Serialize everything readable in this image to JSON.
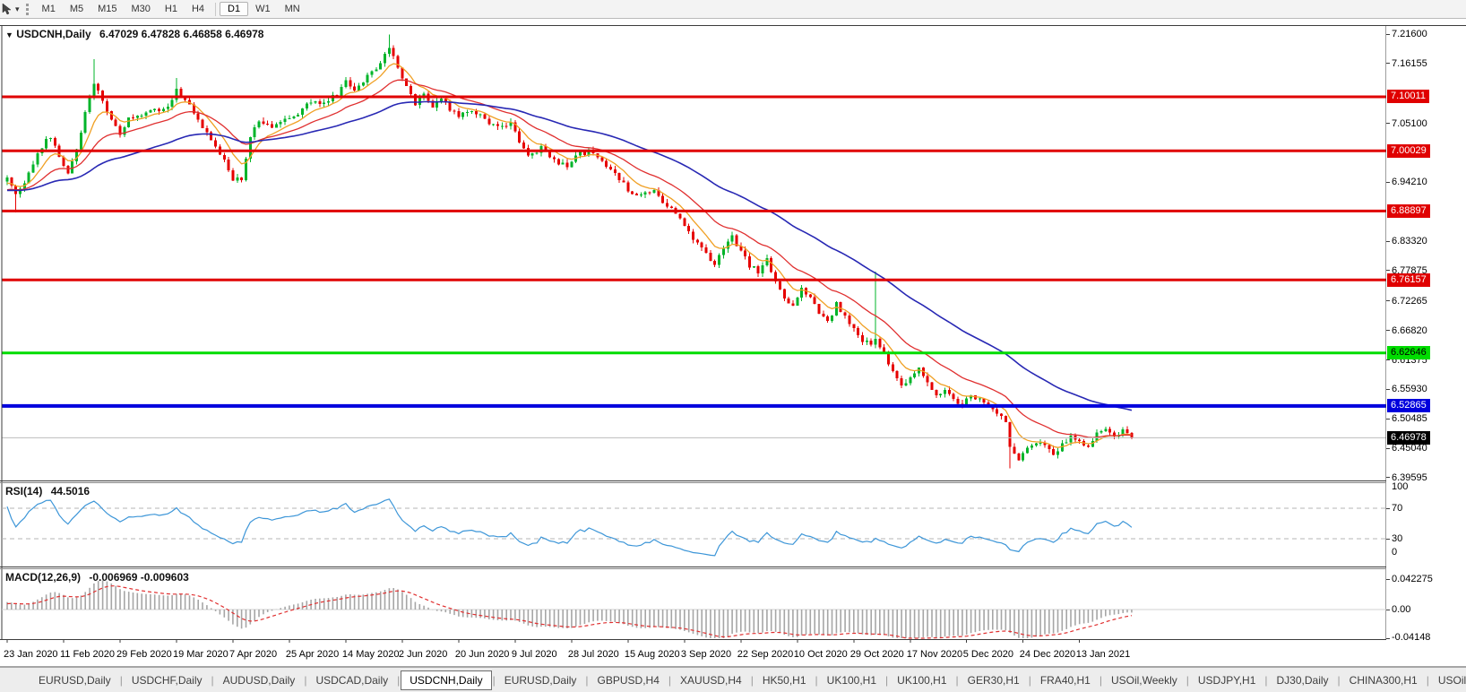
{
  "toolbar": {
    "timeframe_groups": [
      [
        "M1",
        "M5",
        "M15",
        "M30",
        "H1",
        "H4"
      ],
      [
        "D1",
        "W1",
        "MN"
      ]
    ],
    "active_timeframe": "D1",
    "dropdown_caret": "▾"
  },
  "header": {
    "collapse_caret": "▼",
    "symbol": "USDCNH,Daily",
    "ohlc_text": "6.47029 6.47828 6.46858 6.46978",
    "open": "6.47029",
    "high": "6.47828",
    "low": "6.46858",
    "close": "6.46978"
  },
  "price_axis": {
    "ticks": [
      "7.21600",
      "7.16155",
      "7.05100",
      "6.94210",
      "6.83320",
      "6.77875",
      "6.72265",
      "6.66820",
      "6.61375",
      "6.55930",
      "6.50485",
      "6.45040",
      "6.39595"
    ],
    "badges": [
      {
        "value": "7.10011",
        "price": 7.10011,
        "color": "#e00000",
        "text_color": "#ffffff"
      },
      {
        "value": "7.00029",
        "price": 7.00029,
        "color": "#e00000",
        "text_color": "#ffffff"
      },
      {
        "value": "6.88897",
        "price": 6.88897,
        "color": "#e00000",
        "text_color": "#ffffff"
      },
      {
        "value": "6.76157",
        "price": 6.76157,
        "color": "#e00000",
        "text_color": "#ffffff"
      },
      {
        "value": "6.62646",
        "price": 6.62646,
        "color": "#00dd00",
        "text_color": "#000000"
      },
      {
        "value": "6.52865",
        "price": 6.52865,
        "color": "#0000dd",
        "text_color": "#ffffff"
      },
      {
        "value": "6.46978",
        "price": 6.46978,
        "color": "#000000",
        "text_color": "#ffffff"
      }
    ]
  },
  "rsi_panel": {
    "label": "RSI(14)",
    "value": "44.5016",
    "axis_labels": [
      "100",
      "70",
      "30",
      "0"
    ]
  },
  "macd_panel": {
    "label": "MACD(12,26,9)",
    "values": "-0.006969 -0.009603",
    "axis_labels": [
      "0.042275",
      "0.00",
      "-0.04148"
    ]
  },
  "date_axis": {
    "labels": [
      "23 Jan 2020",
      "11 Feb 2020",
      "29 Feb 2020",
      "19 Mar 2020",
      "7 Apr 2020",
      "25 Apr 2020",
      "14 May 2020",
      "2 Jun 2020",
      "20 Jun 2020",
      "9 Jul 2020",
      "28 Jul 2020",
      "15 Aug 2020",
      "3 Sep 2020",
      "22 Sep 2020",
      "10 Oct 2020",
      "29 Oct 2020",
      "17 Nov 2020",
      "5 Dec 2020",
      "24 Dec 2020",
      "13 Jan 2021"
    ],
    "candles_per_label": 13
  },
  "tabs": {
    "items": [
      "EURUSD,Daily",
      "USDCHF,Daily",
      "AUDUSD,Daily",
      "USDCAD,Daily",
      "USDCNH,Daily",
      "EURUSD,Daily",
      "GBPUSD,H4",
      "XAUUSD,H4",
      "HK50,H1",
      "UK100,H1",
      "UK100,H1",
      "GER30,H1",
      "FRA40,H1",
      "USOil,Weekly",
      "USDJPY,H1",
      "DJ30,Daily",
      "CHINA300,H1",
      "USOil,"
    ],
    "active": "USDCNH,Daily",
    "scroll_left": "◄",
    "scroll_right": "►"
  },
  "chart_data": {
    "type": "candlestick",
    "symbol": "USDCNH",
    "timeframe": "Daily",
    "ohlc_display": {
      "open": 6.47029,
      "high": 6.47828,
      "low": 6.46858,
      "close": 6.46978
    },
    "current_price": 6.46978,
    "candles_count": 260,
    "ylim": [
      6.391,
      7.2326
    ],
    "price_axis_ticks": [
      7.216,
      7.16155,
      7.051,
      6.9421,
      6.8332,
      6.77875,
      6.72265,
      6.6682,
      6.61375,
      6.5593,
      6.50485,
      6.4504,
      6.39595
    ],
    "hlines": [
      {
        "price": 7.10011,
        "color": "#e00000",
        "width": 3
      },
      {
        "price": 7.00029,
        "color": "#e00000",
        "width": 3
      },
      {
        "price": 6.88897,
        "color": "#e00000",
        "width": 3
      },
      {
        "price": 6.76157,
        "color": "#e00000",
        "width": 3
      },
      {
        "price": 6.62646,
        "color": "#00dd00",
        "width": 3
      },
      {
        "price": 6.52865,
        "color": "#0000dd",
        "width": 4
      }
    ],
    "up_color": "#00b42a",
    "down_color": "#e60000",
    "moving_averages": [
      {
        "name": "fast",
        "period": 8,
        "color": "#f0a024",
        "width": 1.3
      },
      {
        "name": "medium",
        "period": 21,
        "color": "#e03030",
        "width": 1.3
      },
      {
        "name": "slow",
        "period": 55,
        "color": "#2828b4",
        "width": 1.6
      }
    ],
    "warmup_path": [
      [
        -55,
        6.99
      ],
      [
        -38,
        6.87
      ],
      [
        -20,
        6.9
      ],
      [
        -8,
        6.932
      ],
      [
        -1,
        6.946
      ]
    ],
    "close_path": [
      [
        0,
        6.95
      ],
      [
        2,
        6.918
      ],
      [
        4,
        6.938
      ],
      [
        7,
        6.998
      ],
      [
        10,
        7.028
      ],
      [
        12,
        6.985
      ],
      [
        14,
        6.962
      ],
      [
        16,
        7.002
      ],
      [
        18,
        7.075
      ],
      [
        20,
        7.122
      ],
      [
        22,
        7.095
      ],
      [
        24,
        7.058
      ],
      [
        26,
        7.028
      ],
      [
        28,
        7.058
      ],
      [
        31,
        7.068
      ],
      [
        34,
        7.075
      ],
      [
        37,
        7.078
      ],
      [
        39,
        7.112
      ],
      [
        41,
        7.095
      ],
      [
        44,
        7.058
      ],
      [
        47,
        7.018
      ],
      [
        50,
        6.982
      ],
      [
        52,
        6.948
      ],
      [
        54,
        6.945
      ],
      [
        56,
        7.028
      ],
      [
        58,
        7.055
      ],
      [
        61,
        7.042
      ],
      [
        64,
        7.058
      ],
      [
        67,
        7.068
      ],
      [
        70,
        7.092
      ],
      [
        73,
        7.088
      ],
      [
        76,
        7.105
      ],
      [
        78,
        7.128
      ],
      [
        80,
        7.112
      ],
      [
        83,
        7.138
      ],
      [
        86,
        7.162
      ],
      [
        88,
        7.192
      ],
      [
        90,
        7.158
      ],
      [
        92,
        7.118
      ],
      [
        94,
        7.088
      ],
      [
        96,
        7.108
      ],
      [
        98,
        7.082
      ],
      [
        100,
        7.095
      ],
      [
        102,
        7.078
      ],
      [
        104,
        7.062
      ],
      [
        107,
        7.075
      ],
      [
        110,
        7.058
      ],
      [
        113,
        7.042
      ],
      [
        116,
        7.052
      ],
      [
        118,
        7.018
      ],
      [
        120,
        6.992
      ],
      [
        123,
        7.005
      ],
      [
        126,
        6.982
      ],
      [
        129,
        6.972
      ],
      [
        132,
        6.995
      ],
      [
        135,
        6.998
      ],
      [
        138,
        6.972
      ],
      [
        141,
        6.948
      ],
      [
        143,
        6.928
      ],
      [
        146,
        6.918
      ],
      [
        149,
        6.925
      ],
      [
        152,
        6.898
      ],
      [
        155,
        6.878
      ],
      [
        158,
        6.838
      ],
      [
        161,
        6.812
      ],
      [
        163,
        6.79
      ],
      [
        165,
        6.822
      ],
      [
        167,
        6.842
      ],
      [
        169,
        6.815
      ],
      [
        171,
        6.788
      ],
      [
        173,
        6.778
      ],
      [
        175,
        6.798
      ],
      [
        177,
        6.76
      ],
      [
        179,
        6.73
      ],
      [
        181,
        6.712
      ],
      [
        183,
        6.748
      ],
      [
        185,
        6.73
      ],
      [
        187,
        6.7
      ],
      [
        189,
        6.682
      ],
      [
        191,
        6.718
      ],
      [
        193,
        6.692
      ],
      [
        195,
        6.668
      ],
      [
        197,
        6.65
      ],
      [
        199,
        6.64
      ],
      [
        200,
        6.652
      ],
      [
        202,
        6.625
      ],
      [
        204,
        6.59
      ],
      [
        206,
        6.565
      ],
      [
        208,
        6.582
      ],
      [
        210,
        6.598
      ],
      [
        212,
        6.572
      ],
      [
        214,
        6.552
      ],
      [
        216,
        6.558
      ],
      [
        218,
        6.542
      ],
      [
        220,
        6.532
      ],
      [
        222,
        6.548
      ],
      [
        224,
        6.538
      ],
      [
        226,
        6.528
      ],
      [
        228,
        6.518
      ],
      [
        230,
        6.498
      ],
      [
        231,
        6.452
      ],
      [
        233,
        6.432
      ],
      [
        235,
        6.448
      ],
      [
        237,
        6.462
      ],
      [
        239,
        6.452
      ],
      [
        241,
        6.438
      ],
      [
        243,
        6.458
      ],
      [
        245,
        6.472
      ],
      [
        247,
        6.462
      ],
      [
        249,
        6.452
      ],
      [
        251,
        6.478
      ],
      [
        253,
        6.488
      ],
      [
        255,
        6.472
      ],
      [
        257,
        6.482
      ],
      [
        259,
        6.47
      ]
    ],
    "wick_overrides": [
      {
        "i": 2,
        "low": 6.886
      },
      {
        "i": 20,
        "high": 7.17
      },
      {
        "i": 39,
        "high": 7.135
      },
      {
        "i": 88,
        "high": 7.215
      },
      {
        "i": 200,
        "high": 6.777
      },
      {
        "i": 231,
        "low": 6.413
      }
    ],
    "rsi": {
      "period": 14,
      "current": 44.5016,
      "levels": [
        70,
        30
      ],
      "color": "#3d96d8"
    },
    "macd": {
      "fast": 12,
      "slow": 26,
      "signal": 9,
      "current_macd": -0.006969,
      "current_signal": -0.009603,
      "axis_max": 0.042275,
      "axis_zero": 0.0,
      "axis_min": -0.04148,
      "hist_color": "#a6a6a6",
      "signal_color": "#e03030"
    }
  }
}
